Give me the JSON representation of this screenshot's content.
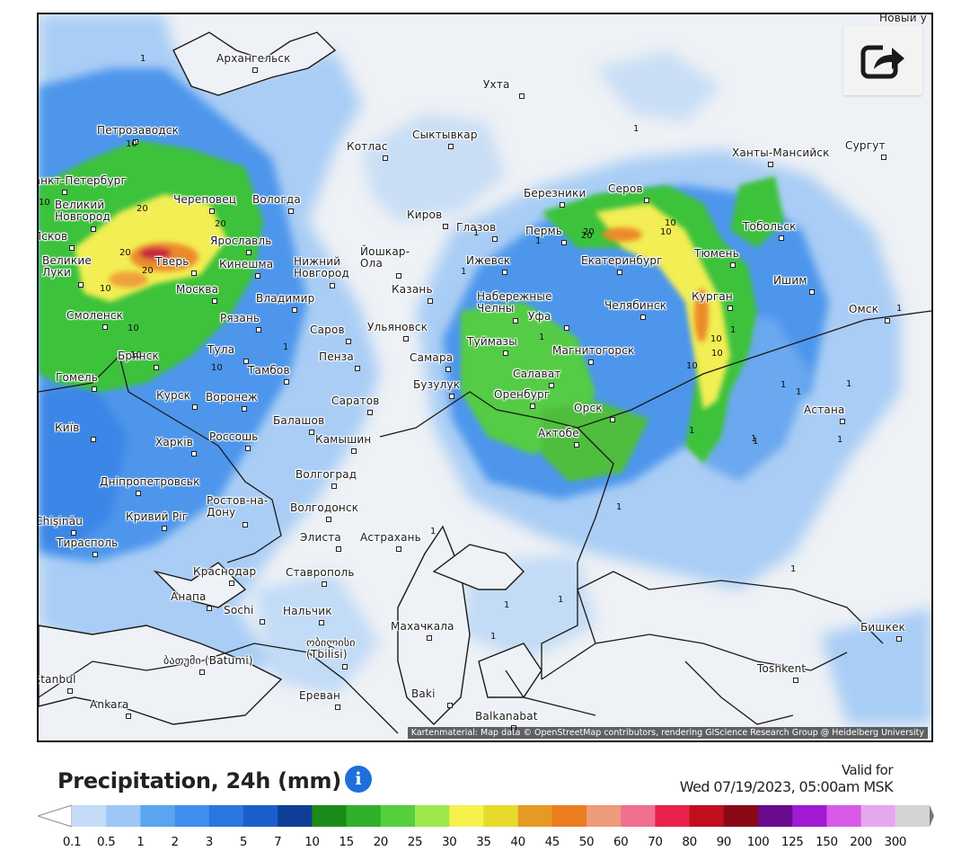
{
  "map": {
    "share_icon": "share-icon",
    "attribution": "Kartenmaterial: Map data © OpenStreetMap contributors, rendering GIScience Research Group @ Heidelberg University",
    "cities": [
      {
        "name": "Архангельск"
      },
      {
        "name": "Ухта"
      },
      {
        "name": "Петрозаводск"
      },
      {
        "name": "Котлас"
      },
      {
        "name": "Сыктывкар"
      },
      {
        "name": "Ханты-Мансийск"
      },
      {
        "name": "Сургут"
      },
      {
        "name": "Санкт-Петербург"
      },
      {
        "name": "Великий\nНовгород"
      },
      {
        "name": "Череповец"
      },
      {
        "name": "Вологда"
      },
      {
        "name": "Березники"
      },
      {
        "name": "Серов"
      },
      {
        "name": "Псков"
      },
      {
        "name": "Киров"
      },
      {
        "name": "Глазов"
      },
      {
        "name": "Пермь"
      },
      {
        "name": "Тобольск"
      },
      {
        "name": "Ярославль"
      },
      {
        "name": "Великие\nЛуки"
      },
      {
        "name": "Тверь"
      },
      {
        "name": "Кинешма"
      },
      {
        "name": "Нижний\nНовгород"
      },
      {
        "name": "Йошкар-\nОла"
      },
      {
        "name": "Ижевск"
      },
      {
        "name": "Екатеринбург"
      },
      {
        "name": "Тюмень"
      },
      {
        "name": "Москва"
      },
      {
        "name": "Владимир"
      },
      {
        "name": "Казань"
      },
      {
        "name": "Набережные\nЧелны"
      },
      {
        "name": "Курган"
      },
      {
        "name": "Ишим"
      },
      {
        "name": "Смоленск"
      },
      {
        "name": "Рязань"
      },
      {
        "name": "Саров"
      },
      {
        "name": "Ульяновск"
      },
      {
        "name": "Уфа"
      },
      {
        "name": "Челябинск"
      },
      {
        "name": "Омск"
      },
      {
        "name": "Туймазы"
      },
      {
        "name": "Брянск"
      },
      {
        "name": "Тула"
      },
      {
        "name": "Пенза"
      },
      {
        "name": "Самара"
      },
      {
        "name": "Магнитогорск"
      },
      {
        "name": "Тамбов"
      },
      {
        "name": "Салават"
      },
      {
        "name": "Гомель"
      },
      {
        "name": "Бузулук"
      },
      {
        "name": "Курск"
      },
      {
        "name": "Воронеж"
      },
      {
        "name": "Саратов"
      },
      {
        "name": "Оренбург"
      },
      {
        "name": "Астана"
      },
      {
        "name": "Київ"
      },
      {
        "name": "Балашов"
      },
      {
        "name": "Орск"
      },
      {
        "name": "Россошь"
      },
      {
        "name": "Камышин"
      },
      {
        "name": "Актобе"
      },
      {
        "name": "Харків"
      },
      {
        "name": "Дніпропетровськ"
      },
      {
        "name": "Волгоград"
      },
      {
        "name": "Ростов-на-\nДону"
      },
      {
        "name": "Волгодонск"
      },
      {
        "name": "Кривий Ріг"
      },
      {
        "name": "Chişinău"
      },
      {
        "name": "Элиста"
      },
      {
        "name": "Астрахань"
      },
      {
        "name": "Тирасполь"
      },
      {
        "name": "Краснодар"
      },
      {
        "name": "Ставрополь"
      },
      {
        "name": "Анапа"
      },
      {
        "name": "Sochi"
      },
      {
        "name": "Нальчик"
      },
      {
        "name": "Махачкала"
      },
      {
        "name": "Бишкек"
      },
      {
        "name": "ობილისი\n(Tbilisi)"
      },
      {
        "name": "ბათუმი (Batumi)"
      },
      {
        "name": "Toshkent"
      },
      {
        "name": "İstanbul"
      },
      {
        "name": "Ankara"
      },
      {
        "name": "Ереван"
      },
      {
        "name": "Baki"
      },
      {
        "name": "Balkanabat"
      },
      {
        "name": "Новый у"
      }
    ],
    "values": [
      "1",
      "10",
      "20",
      "10",
      "20",
      "20",
      "10",
      "20",
      "10",
      "10",
      "10",
      "20",
      "10",
      "1",
      "1",
      "1",
      "1",
      "1",
      "10",
      "1",
      "1",
      "1",
      "1",
      "1",
      "1",
      "1",
      "1",
      "1",
      "1",
      "1",
      "20",
      "10",
      "10",
      "10",
      "1",
      "1",
      "1",
      "1",
      "1"
    ]
  },
  "legend": {
    "title": "Precipitation, 24h (mm)",
    "info_icon": "info-icon",
    "valid_label": "Valid for",
    "valid_time": "Wed 07/19/2023, 05:00am MSK",
    "ticks": [
      "0.1",
      "0.5",
      "1",
      "2",
      "3",
      "5",
      "7",
      "10",
      "15",
      "20",
      "25",
      "30",
      "35",
      "40",
      "45",
      "50",
      "60",
      "70",
      "80",
      "90",
      "100",
      "125",
      "150",
      "200",
      "300"
    ],
    "colors": [
      "#c4dcf8",
      "#9cc7f6",
      "#5aa5ef",
      "#3f8ff0",
      "#2a77e2",
      "#1b5fcc",
      "#0e3f98",
      "#1d8b1a",
      "#2fb12b",
      "#55cf3e",
      "#9ae84a",
      "#f5f24d",
      "#e7d92c",
      "#e59a22",
      "#ec7d1f",
      "#ed9b79",
      "#f0708e",
      "#e8224c",
      "#c00f1f",
      "#8a0917",
      "#6a0b8e",
      "#a11ad4",
      "#d65ae6",
      "#e7a6f0",
      "#f4e3f7",
      "#d4d4d4"
    ]
  }
}
